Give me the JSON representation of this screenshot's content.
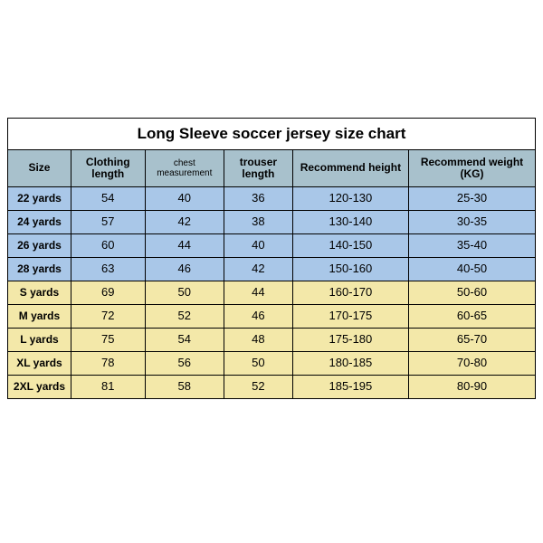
{
  "title": "Long Sleeve soccer jersey size chart",
  "columns": [
    "Size",
    "Clothing length",
    "chest measurement",
    "trouser length",
    "Recommend height",
    "Recommend weight (KG)"
  ],
  "colors": {
    "header_bg": "#a8c1cc",
    "blue_row": "#a9c7e8",
    "yellow_row": "#f3e8a9",
    "border": "#000000",
    "title_bg": "#ffffff"
  },
  "rows": [
    {
      "tone": "blue",
      "cells": [
        "22 yards",
        "54",
        "40",
        "36",
        "120-130",
        "25-30"
      ]
    },
    {
      "tone": "blue",
      "cells": [
        "24 yards",
        "57",
        "42",
        "38",
        "130-140",
        "30-35"
      ]
    },
    {
      "tone": "blue",
      "cells": [
        "26 yards",
        "60",
        "44",
        "40",
        "140-150",
        "35-40"
      ]
    },
    {
      "tone": "blue",
      "cells": [
        "28 yards",
        "63",
        "46",
        "42",
        "150-160",
        "40-50"
      ]
    },
    {
      "tone": "yellow",
      "cells": [
        "S yards",
        "69",
        "50",
        "44",
        "160-170",
        "50-60"
      ]
    },
    {
      "tone": "yellow",
      "cells": [
        "M yards",
        "72",
        "52",
        "46",
        "170-175",
        "60-65"
      ]
    },
    {
      "tone": "yellow",
      "cells": [
        "L yards",
        "75",
        "54",
        "48",
        "175-180",
        "65-70"
      ]
    },
    {
      "tone": "yellow",
      "cells": [
        "XL yards",
        "78",
        "56",
        "50",
        "180-185",
        "70-80"
      ]
    },
    {
      "tone": "yellow",
      "cells": [
        "2XL yards",
        "81",
        "58",
        "52",
        "185-195",
        "80-90"
      ]
    }
  ]
}
